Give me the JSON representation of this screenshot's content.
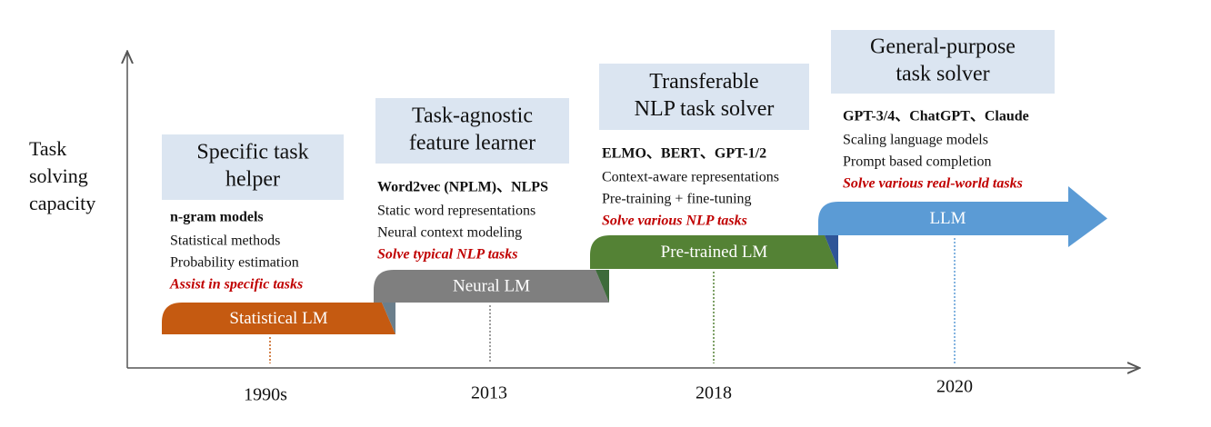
{
  "axis_label": [
    "Task",
    "solving",
    "capacity"
  ],
  "stages": [
    {
      "title": [
        "Specific task",
        "helper"
      ],
      "models": "n-gram models",
      "features": [
        "Statistical methods",
        "Probability estimation"
      ],
      "goal": "Assist in specific tasks",
      "band": "Statistical LM",
      "year": "1990s"
    },
    {
      "title": [
        "Task-agnostic",
        "feature learner"
      ],
      "models": "Word2vec (NPLM)、NLPS",
      "features": [
        "Static word representations",
        "Neural context modeling"
      ],
      "goal": "Solve typical NLP tasks",
      "band": "Neural LM",
      "year": "2013"
    },
    {
      "title": [
        "Transferable",
        "NLP task solver"
      ],
      "models": "ELMO、BERT、GPT-1/2",
      "features": [
        "Context-aware representations",
        "Pre-training + fine-tuning"
      ],
      "goal": "Solve various NLP tasks",
      "band": "Pre-trained LM",
      "year": "2018"
    },
    {
      "title": [
        "General-purpose",
        "task solver"
      ],
      "models": "GPT-3/4、ChatGPT、Claude",
      "features": [
        "Scaling language models",
        "Prompt based completion"
      ],
      "goal": "Solve various real-world tasks",
      "band": "LLM",
      "year": "2020"
    }
  ]
}
